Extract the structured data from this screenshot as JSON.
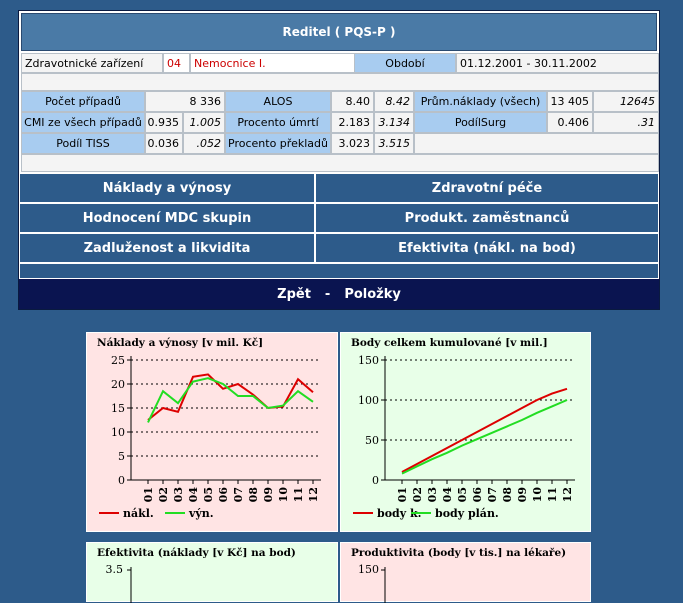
{
  "header": {
    "title": "Reditel ( PQS-P )"
  },
  "facility": {
    "label": "Zdravotnické zařízení",
    "code": "04",
    "name": "Nemocnice I.",
    "period_label": "Období",
    "period_value": "01.12.2001 - 30.11.2002"
  },
  "stats": {
    "pocet_label": "Počet případů",
    "pocet_value": "8 336",
    "alos_label": "ALOS",
    "alos_value": "8.40",
    "alos_compare": "8.42",
    "prum_label": "Prům.náklady (všech)",
    "prum_value": "13 405",
    "prum_compare": "12645",
    "cmi_label": "CMI ze všech případů",
    "cmi_value": "0.935",
    "cmi_compare": "1.005",
    "umrti_label": "Procento úmrtí",
    "umrti_value": "2.183",
    "umrti_compare": "3.134",
    "surg_label": "PodílSurg",
    "surg_value": "0.406",
    "surg_compare": ".31",
    "tiss_label": "Podíl TISS",
    "tiss_value": "0.036",
    "tiss_compare": ".052",
    "preklad_label": "Procento překladů",
    "preklad_value": "3.023",
    "preklad_compare": "3.515"
  },
  "nav": {
    "naklady": "Náklady a výnosy",
    "pece": "Zdravotní péče",
    "mdc": "Hodnocení MDC skupin",
    "produkt": "Produkt. zaměstnanců",
    "zadluzenost": "Zadluženost a likvidita",
    "efektivita": "Efektivita (nákl. na bod)"
  },
  "footer": {
    "back": "Zpět",
    "separator": "-",
    "items": "Položky"
  },
  "charts": {
    "c1": {
      "title": "Náklady a výnosy [v mil. Kč]",
      "legend1": "nákl.",
      "legend2": "výn."
    },
    "c2": {
      "title": "Body celkem kumulované [v mil.]",
      "legend1": "body k.",
      "legend2": "body plán."
    },
    "c3": {
      "title": "Efektivita (náklady [v Kč] na bod)",
      "tick_top": "3.5"
    },
    "c4": {
      "title": "Produktivita (body [v tis.] na lékaře)",
      "tick_top": "150"
    }
  },
  "chart_data": [
    {
      "type": "line",
      "title": "Náklady a výnosy [v mil. Kč]",
      "categories": [
        "01",
        "02",
        "03",
        "04",
        "05",
        "06",
        "07",
        "08",
        "09",
        "10",
        "11",
        "12"
      ],
      "ylim": [
        0,
        25
      ],
      "yticks": [
        "0",
        "5",
        "10",
        "15",
        "20",
        "25"
      ],
      "series": [
        {
          "name": "nákl.",
          "color": "#dd0000",
          "values": [
            12.5,
            15.0,
            14.2,
            21.5,
            22.0,
            19.0,
            20.0,
            17.8,
            15.0,
            15.3,
            21.0,
            18.3
          ]
        },
        {
          "name": "výn.",
          "color": "#22dd22",
          "values": [
            12.0,
            18.5,
            16.0,
            20.5,
            21.2,
            20.0,
            17.5,
            17.5,
            15.0,
            15.5,
            18.5,
            16.3
          ]
        }
      ],
      "background": "#ffe4e4"
    },
    {
      "type": "line",
      "title": "Body celkem kumulované [v mil.]",
      "categories": [
        "01",
        "02",
        "03",
        "04",
        "05",
        "06",
        "07",
        "08",
        "09",
        "10",
        "11",
        "12"
      ],
      "ylim": [
        0,
        150
      ],
      "yticks": [
        "0",
        "50",
        "100",
        "150"
      ],
      "series": [
        {
          "name": "body k.",
          "color": "#dd0000",
          "values": [
            10,
            20,
            30,
            40,
            50,
            60,
            70,
            80,
            90,
            100,
            108,
            114
          ]
        },
        {
          "name": "body plán.",
          "color": "#22dd22",
          "values": [
            8,
            17,
            26,
            34,
            43,
            51,
            59,
            67,
            75,
            84,
            92,
            100
          ]
        }
      ],
      "background": "#e8ffe8"
    }
  ]
}
